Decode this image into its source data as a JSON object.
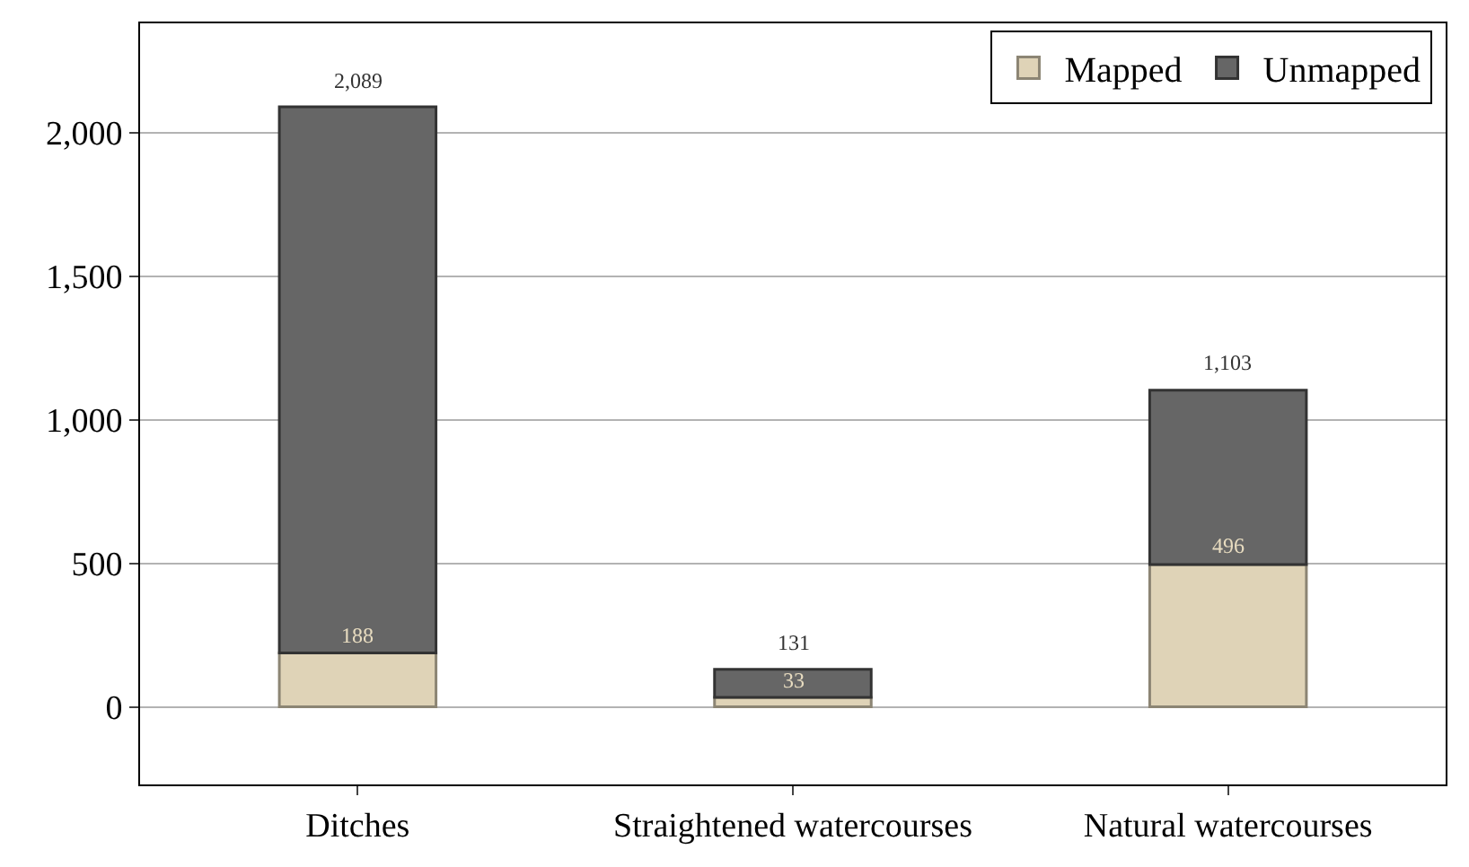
{
  "chart_data": {
    "type": "bar",
    "stacked": true,
    "categories": [
      "Ditches",
      "Straightened watercourses",
      "Natural watercourses"
    ],
    "series": [
      {
        "name": "Mapped",
        "color": "#dfd3b7",
        "values": [
          188,
          33,
          496
        ],
        "value_labels": [
          "188",
          "33",
          "496"
        ]
      },
      {
        "name": "Unmapped",
        "color": "#666666",
        "values": [
          1901,
          98,
          607
        ]
      }
    ],
    "totals": [
      "2,089",
      "131",
      "1,103"
    ],
    "ylim": [
      -270,
      2380
    ],
    "yticks": [
      {
        "value": 0,
        "label": "0"
      },
      {
        "value": 500,
        "label": "500"
      },
      {
        "value": 1000,
        "label": "1,000"
      },
      {
        "value": 1500,
        "label": "1,500"
      },
      {
        "value": 2000,
        "label": "2,000"
      }
    ],
    "grid": "y",
    "legend": "top right"
  }
}
